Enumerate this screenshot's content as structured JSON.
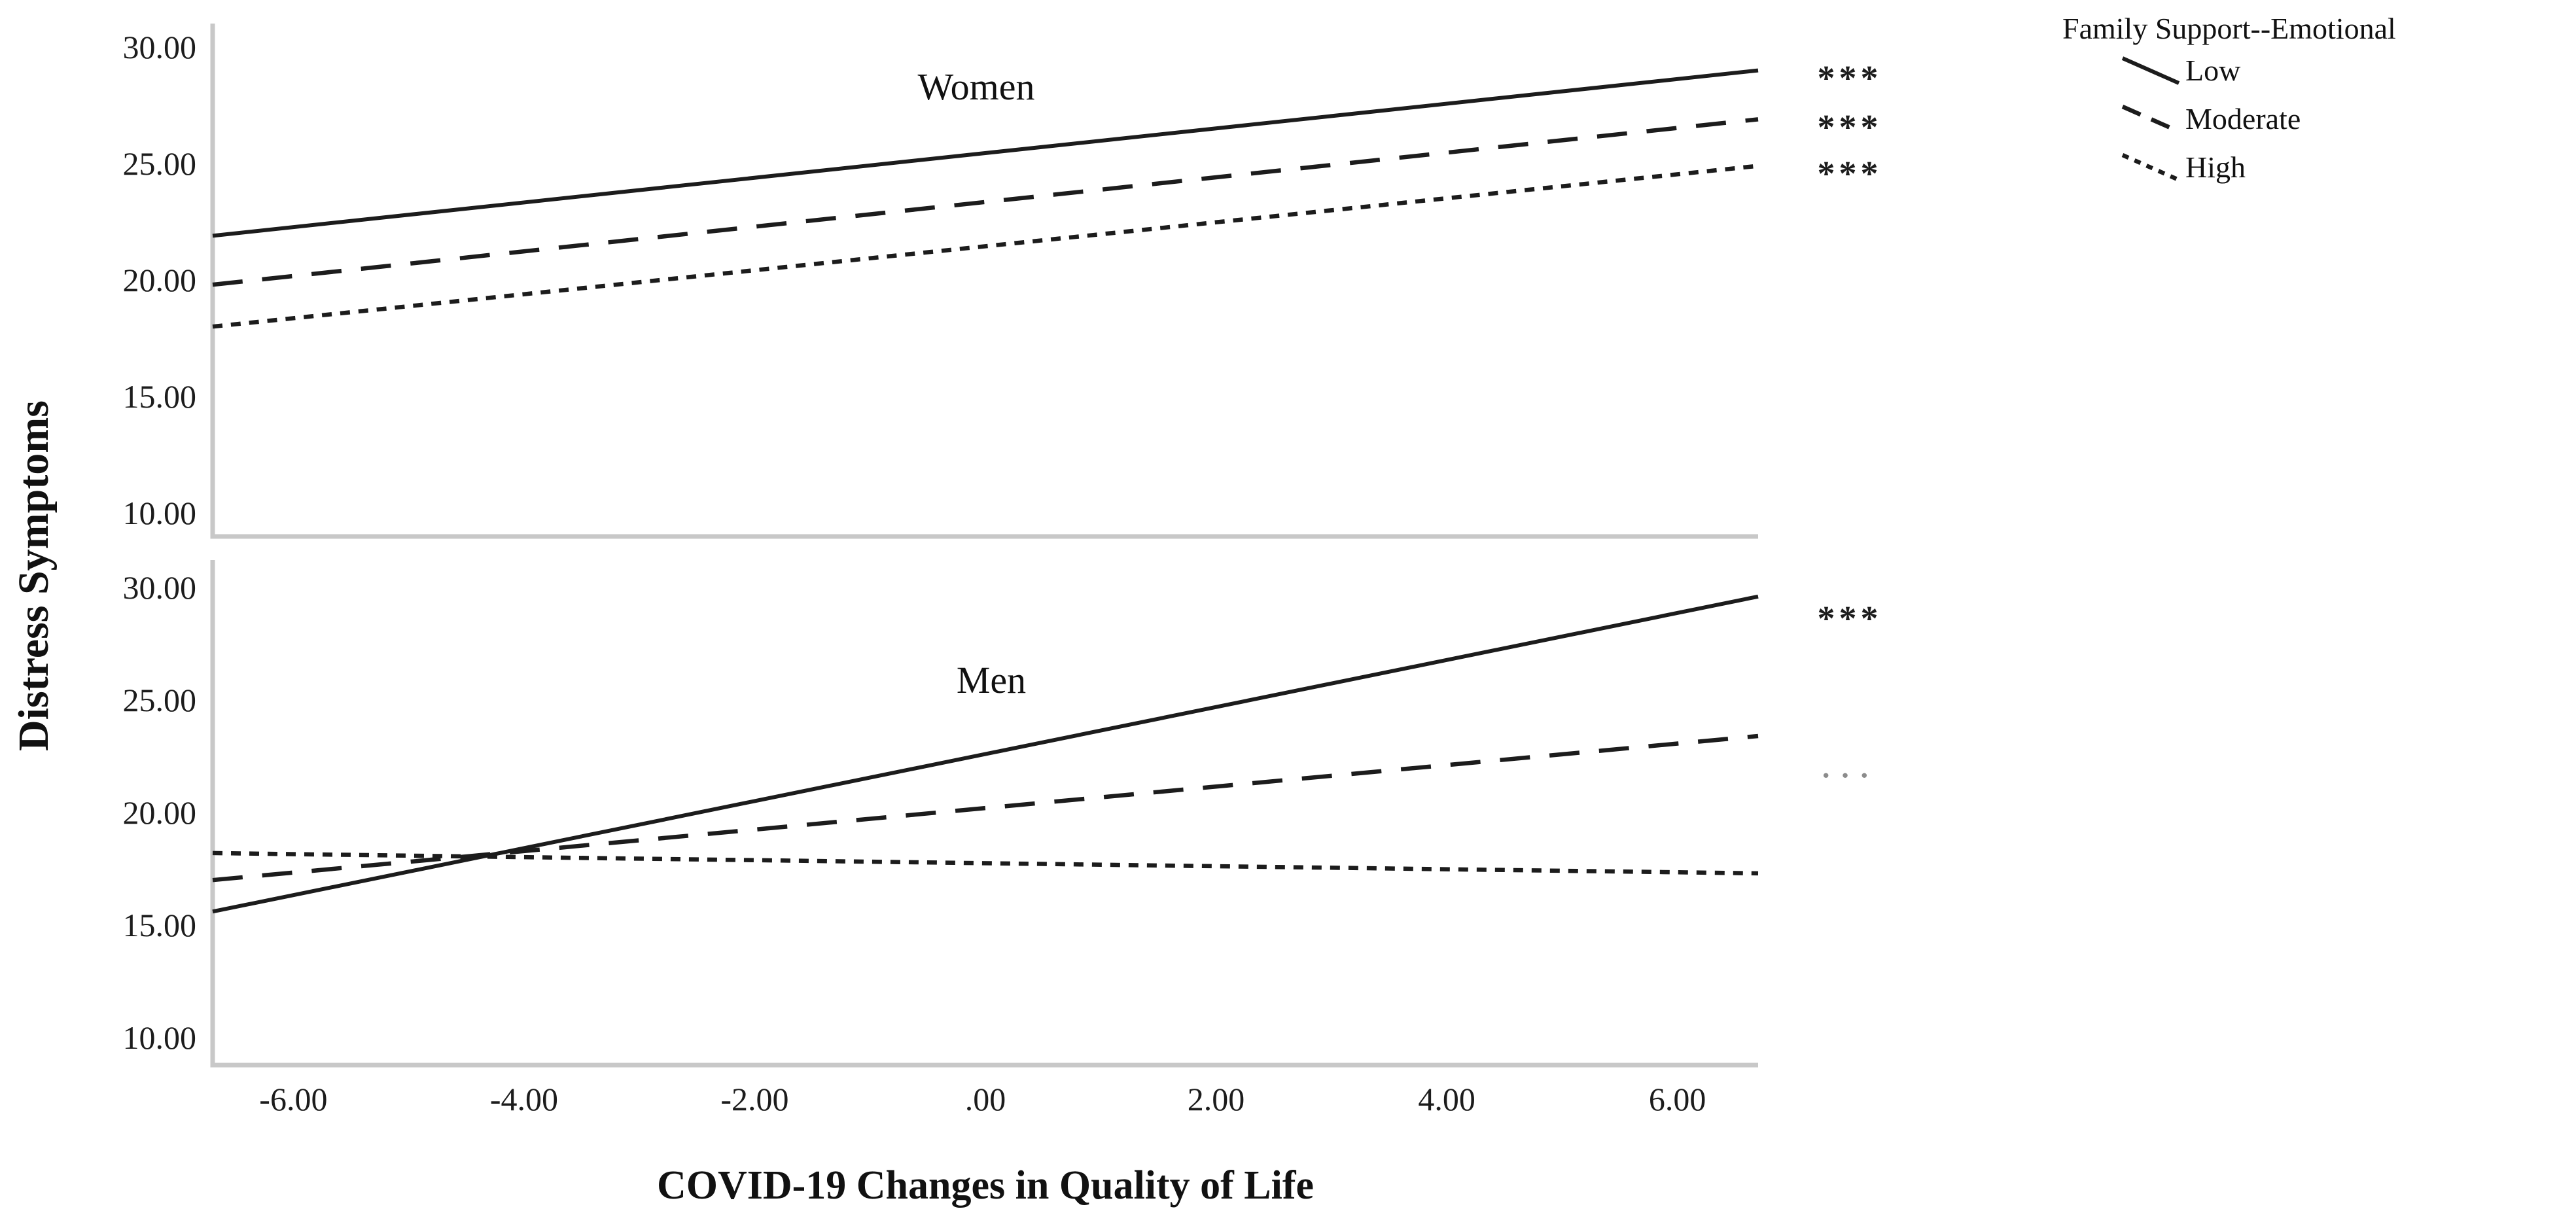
{
  "figure": {
    "background": "#ffffff"
  },
  "chart_data": {
    "type": "line",
    "title": "",
    "xlabel": "COVID-19 Changes in Quality of Life",
    "ylabel": "Distress Symptoms",
    "xlim": [
      -6.7,
      6.7
    ],
    "ylim": [
      9,
      31
    ],
    "grid": false,
    "x_ticks": [
      -6,
      -4,
      -2,
      0,
      2,
      4,
      6
    ],
    "x_tick_labels": [
      "-6.00",
      "-4.00",
      "-2.00",
      ".00",
      "2.00",
      "4.00",
      "6.00"
    ],
    "y_ticks": [
      30,
      25,
      20,
      15,
      10
    ],
    "y_tick_labels": [
      "30.00",
      "25.00",
      "20.00",
      "15.00",
      "10.00"
    ],
    "panels": [
      {
        "label": "Women",
        "series": [
          {
            "name": "Low",
            "style": "solid",
            "x": [
              -6.7,
              6.7
            ],
            "y": [
              21.9,
              29.0
            ],
            "sig": "***",
            "sig_style": "stars"
          },
          {
            "name": "Moderate",
            "style": "dashed",
            "x": [
              -6.7,
              6.7
            ],
            "y": [
              19.8,
              26.9
            ],
            "sig": "***",
            "sig_style": "stars"
          },
          {
            "name": "High",
            "style": "dotted",
            "x": [
              -6.7,
              6.7
            ],
            "y": [
              18.0,
              24.9
            ],
            "sig": "***",
            "sig_style": "stars"
          }
        ]
      },
      {
        "label": "Men",
        "series": [
          {
            "name": "Low",
            "style": "solid",
            "x": [
              -6.7,
              6.7
            ],
            "y": [
              15.6,
              29.6
            ],
            "sig": "***",
            "sig_style": "stars"
          },
          {
            "name": "Moderate",
            "style": "dashed",
            "x": [
              -6.7,
              6.7
            ],
            "y": [
              17.0,
              23.4
            ],
            "sig": "···",
            "sig_style": "dots"
          },
          {
            "name": "High",
            "style": "dotted",
            "x": [
              -6.7,
              6.7
            ],
            "y": [
              18.2,
              17.3
            ],
            "sig": "",
            "sig_style": "none"
          }
        ]
      }
    ],
    "legend": {
      "title": "Family Support--Emotional",
      "position": "top-right",
      "items": [
        {
          "label": "Low",
          "style": "solid"
        },
        {
          "label": "Moderate",
          "style": "dashed"
        },
        {
          "label": "High",
          "style": "dotted"
        }
      ]
    },
    "colors": {
      "line": "#1c1c1c",
      "axis": "#c8c8c8",
      "sig_stars": "#1c1c1c",
      "sig_dots": "#8c8c8c",
      "background": "#ffffff"
    }
  }
}
